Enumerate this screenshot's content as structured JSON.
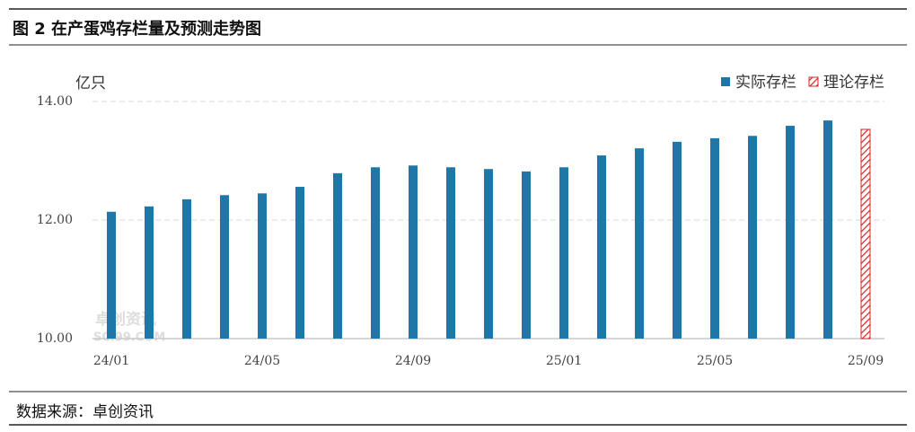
{
  "chart_data": {
    "type": "bar",
    "title": "图 2 在产蛋鸡存栏量及预测走势图",
    "y_label": "亿只",
    "source": "数据来源：卓创资讯",
    "watermark": [
      "卓创资讯",
      "SCI99.COM"
    ],
    "categories": [
      "24/01",
      null,
      null,
      null,
      "24/05",
      null,
      null,
      null,
      "24/09",
      null,
      null,
      null,
      "25/01",
      null,
      null,
      null,
      "25/05",
      null,
      null,
      null,
      "25/09"
    ],
    "series": [
      {
        "name": "实际存栏",
        "color": "#1f77a8",
        "hatch": false,
        "values": [
          12.14,
          12.23,
          12.35,
          12.42,
          12.45,
          12.56,
          12.79,
          12.89,
          12.92,
          12.89,
          12.86,
          12.82,
          12.89,
          13.09,
          13.21,
          13.32,
          13.38,
          13.42,
          13.59,
          13.68,
          null
        ]
      },
      {
        "name": "理论存栏",
        "color": "#d42a2a",
        "hatch": true,
        "values": [
          null,
          null,
          null,
          null,
          null,
          null,
          null,
          null,
          null,
          null,
          null,
          null,
          null,
          null,
          null,
          null,
          null,
          null,
          null,
          null,
          13.53
        ]
      }
    ],
    "ylim": [
      10,
      14
    ],
    "yticks": [
      {
        "value": 10,
        "label": "10.00"
      },
      {
        "value": 12,
        "label": "12.00"
      },
      {
        "value": 14,
        "label": "14.00"
      }
    ],
    "grid": true,
    "legend": "top-right"
  }
}
